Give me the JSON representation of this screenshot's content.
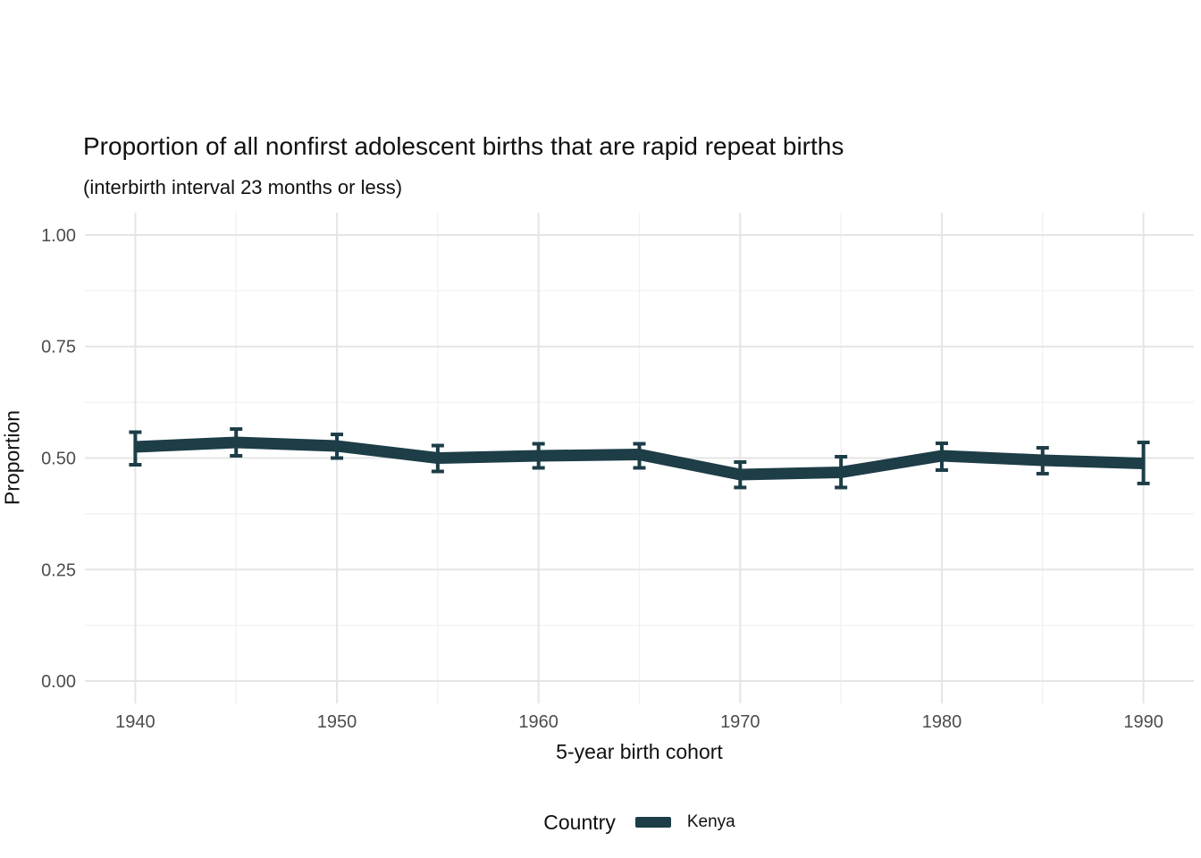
{
  "chart_data": {
    "type": "line",
    "title": "Proportion of all nonfirst adolescent births that are rapid repeat births",
    "subtitle": "(interbirth interval 23 months or less)",
    "xlabel": "5-year birth cohort",
    "ylabel": "Proportion",
    "legend_title": "Country",
    "legend_position": "bottom",
    "grid": "major+minor",
    "x": [
      1940,
      1945,
      1950,
      1955,
      1960,
      1965,
      1970,
      1975,
      1980,
      1985,
      1990
    ],
    "series": [
      {
        "name": "Kenya",
        "color": "#1d3d47",
        "values": [
          0.525,
          0.535,
          0.527,
          0.5,
          0.505,
          0.508,
          0.463,
          0.468,
          0.505,
          0.495,
          0.488
        ],
        "ci_lower": [
          0.485,
          0.505,
          0.5,
          0.47,
          0.478,
          0.478,
          0.434,
          0.434,
          0.473,
          0.465,
          0.443
        ],
        "ci_upper": [
          0.558,
          0.565,
          0.553,
          0.528,
          0.532,
          0.532,
          0.491,
          0.503,
          0.533,
          0.523,
          0.535
        ]
      }
    ],
    "x_tick_values": [
      1940,
      1950,
      1960,
      1970,
      1980,
      1990
    ],
    "x_tick_labels": [
      "1940",
      "1950",
      "1960",
      "1970",
      "1980",
      "1990"
    ],
    "y_tick_values": [
      0,
      0.25,
      0.5,
      0.75,
      1
    ],
    "y_tick_labels": [
      "0.00",
      "0.25",
      "0.50",
      "0.75",
      "1.00"
    ],
    "xlim": [
      1937.5,
      1992.5
    ],
    "ylim": [
      -0.05,
      1.05
    ]
  }
}
